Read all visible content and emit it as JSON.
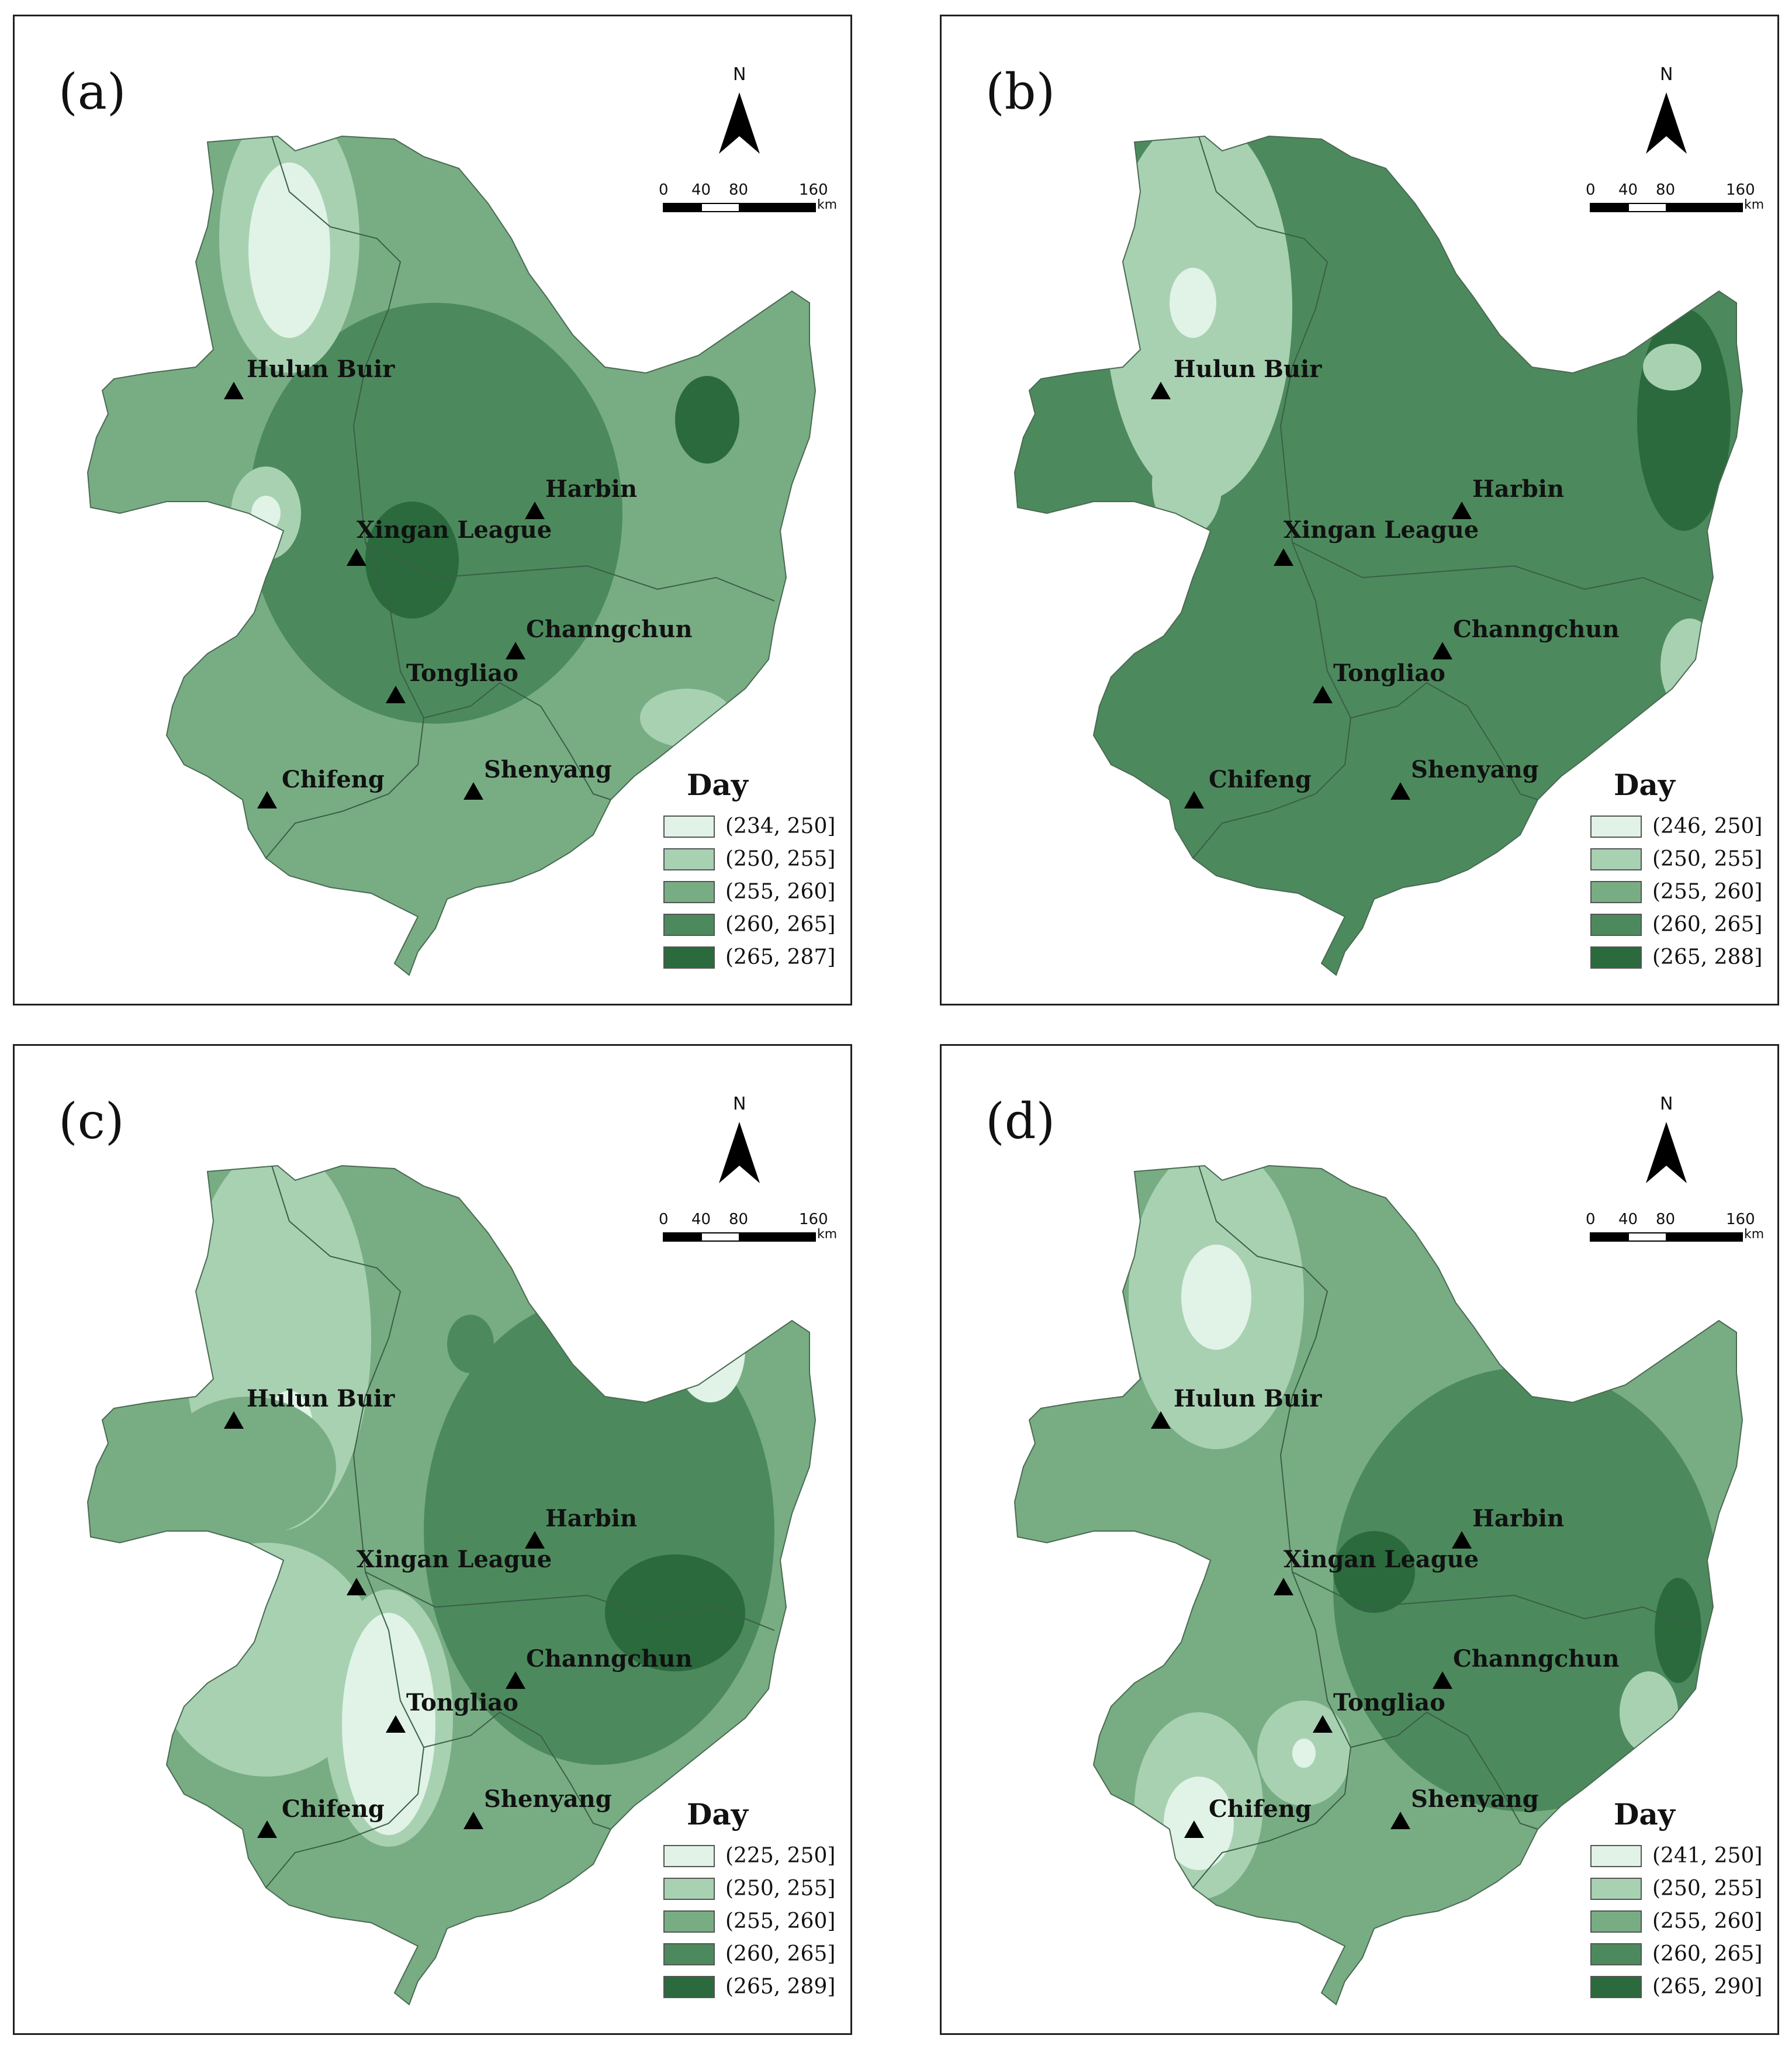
{
  "panels": [
    {
      "label": "(a)",
      "classes": [
        "(234, 250]",
        "(250, 255]",
        "(255, 260]",
        "(260, 265]",
        "(265, 287]"
      ]
    },
    {
      "label": "(b)",
      "classes": [
        "(246, 250]",
        "(250, 255]",
        "(255, 260]",
        "(260, 265]",
        "(265, 288]"
      ]
    },
    {
      "label": "(c)",
      "classes": [
        "(225, 250]",
        "(250, 255]",
        "(255, 260]",
        "(260, 265]",
        "(265, 289]"
      ]
    },
    {
      "label": "(d)",
      "classes": [
        "(241, 250]",
        "(250, 255]",
        "(255, 260]",
        "(260, 265]",
        "(265, 290]"
      ]
    }
  ],
  "legend_title": "Day",
  "class_colors": [
    "#e0f3e6",
    "#a8d1b2",
    "#78ad84",
    "#4c8a5d",
    "#2a6a3d"
  ],
  "cities": [
    "Hulun Buir",
    "Harbin",
    "Xingan League",
    "Channgchun",
    "Tongliao",
    "Shenyang",
    "Chifeng"
  ],
  "north_label": "N",
  "scale_labels": [
    "0",
    "40",
    "80",
    "160"
  ],
  "scale_unit": "km",
  "map_elements": {
    "north_arrow_icon": "north-arrow-icon",
    "city_marker_icon": "triangle-marker-icon"
  }
}
